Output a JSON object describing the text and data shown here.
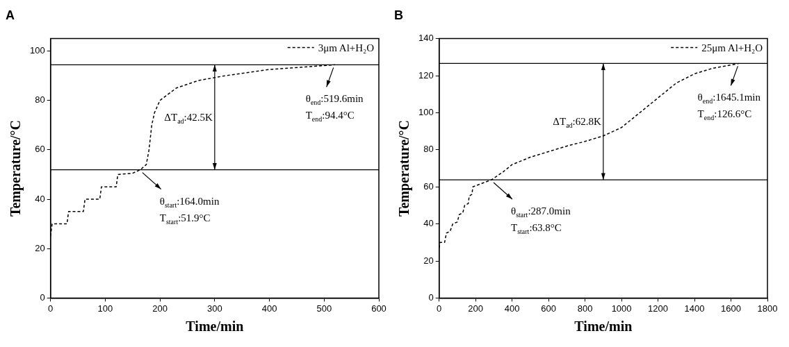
{
  "chart_data": [
    {
      "type": "line",
      "title": "A",
      "xlabel": "Time/min",
      "ylabel": "Temperature/°C",
      "xlim": [
        0,
        600
      ],
      "xticks": [
        0,
        100,
        200,
        300,
        400,
        500,
        600
      ],
      "ylim": [
        0,
        105
      ],
      "yticks": [
        0,
        20,
        40,
        60,
        80,
        100
      ],
      "legend": "top right",
      "marker": "none",
      "line_style": "dashed",
      "grid": false,
      "series": [
        {
          "name": "3μm Al+H₂O",
          "color": "#000000",
          "x": [
            0,
            3,
            30,
            33,
            60,
            63,
            90,
            93,
            120,
            123,
            150,
            164,
            175,
            180,
            185,
            190,
            200,
            230,
            270,
            320,
            400,
            519.6
          ],
          "values": [
            25,
            30,
            30,
            35,
            35,
            40,
            40,
            45,
            45,
            50,
            50.5,
            51.9,
            54,
            60,
            70,
            75,
            80,
            85,
            88,
            90,
            92.5,
            94.4
          ]
        }
      ],
      "ref_lines": [
        {
          "axis": "y",
          "value": 94.4,
          "color": "#000000"
        },
        {
          "axis": "y",
          "value": 51.9,
          "color": "#000000"
        }
      ],
      "annotations": [
        {
          "text": "θ$_{start}$:164.0min\nT$_{start}$:51.9°C",
          "x": 164,
          "y": 51.9
        },
        {
          "text": "θ$_{end}$:519.6min\nT$_{end}$:94.4°C",
          "x": 519.6,
          "y": 94.4
        },
        "ΔT$_{ad}$:42.5K"
      ]
    },
    {
      "type": "line",
      "title": "B",
      "xlabel": "Time/min",
      "ylabel": "Temperature/°C",
      "xlim": [
        0,
        1800
      ],
      "xticks": [
        0,
        200,
        400,
        600,
        800,
        1000,
        1200,
        1400,
        1600,
        1800
      ],
      "ylim": [
        0,
        140
      ],
      "yticks": [
        0,
        20,
        40,
        60,
        80,
        100,
        120,
        140
      ],
      "legend": "top right",
      "marker": "none",
      "line_style": "dashed",
      "grid": false,
      "series": [
        {
          "name": "25μm Al+H₂O",
          "color": "#000000",
          "x": [
            0,
            5,
            30,
            40,
            60,
            75,
            100,
            110,
            130,
            140,
            160,
            165,
            180,
            185,
            287,
            350,
            400,
            500,
            600,
            700,
            800,
            900,
            1000,
            1100,
            1200,
            1300,
            1400,
            1500,
            1645.1
          ],
          "values": [
            27,
            30,
            30,
            35,
            36,
            40,
            41,
            45,
            46,
            50,
            51,
            55,
            56,
            60,
            63.8,
            68,
            72,
            76,
            79,
            82,
            84.5,
            87.5,
            92,
            100,
            108,
            116,
            121,
            124,
            126.6
          ]
        }
      ],
      "ref_lines": [
        {
          "axis": "y",
          "value": 126.6,
          "color": "#000000"
        },
        {
          "axis": "y",
          "value": 63.8,
          "color": "#000000"
        }
      ],
      "annotations": [
        {
          "text": "θ$_{start}$:287.0min\nT$_{start}$:63.8°C",
          "x": 287,
          "y": 63.8
        },
        {
          "text": "θ$_{end}$:1645.1min\nT$_{end}$:126.6°C",
          "x": 1645.1,
          "y": 126.6
        },
        "ΔT$_{ad}$:62.8K"
      ]
    }
  ]
}
